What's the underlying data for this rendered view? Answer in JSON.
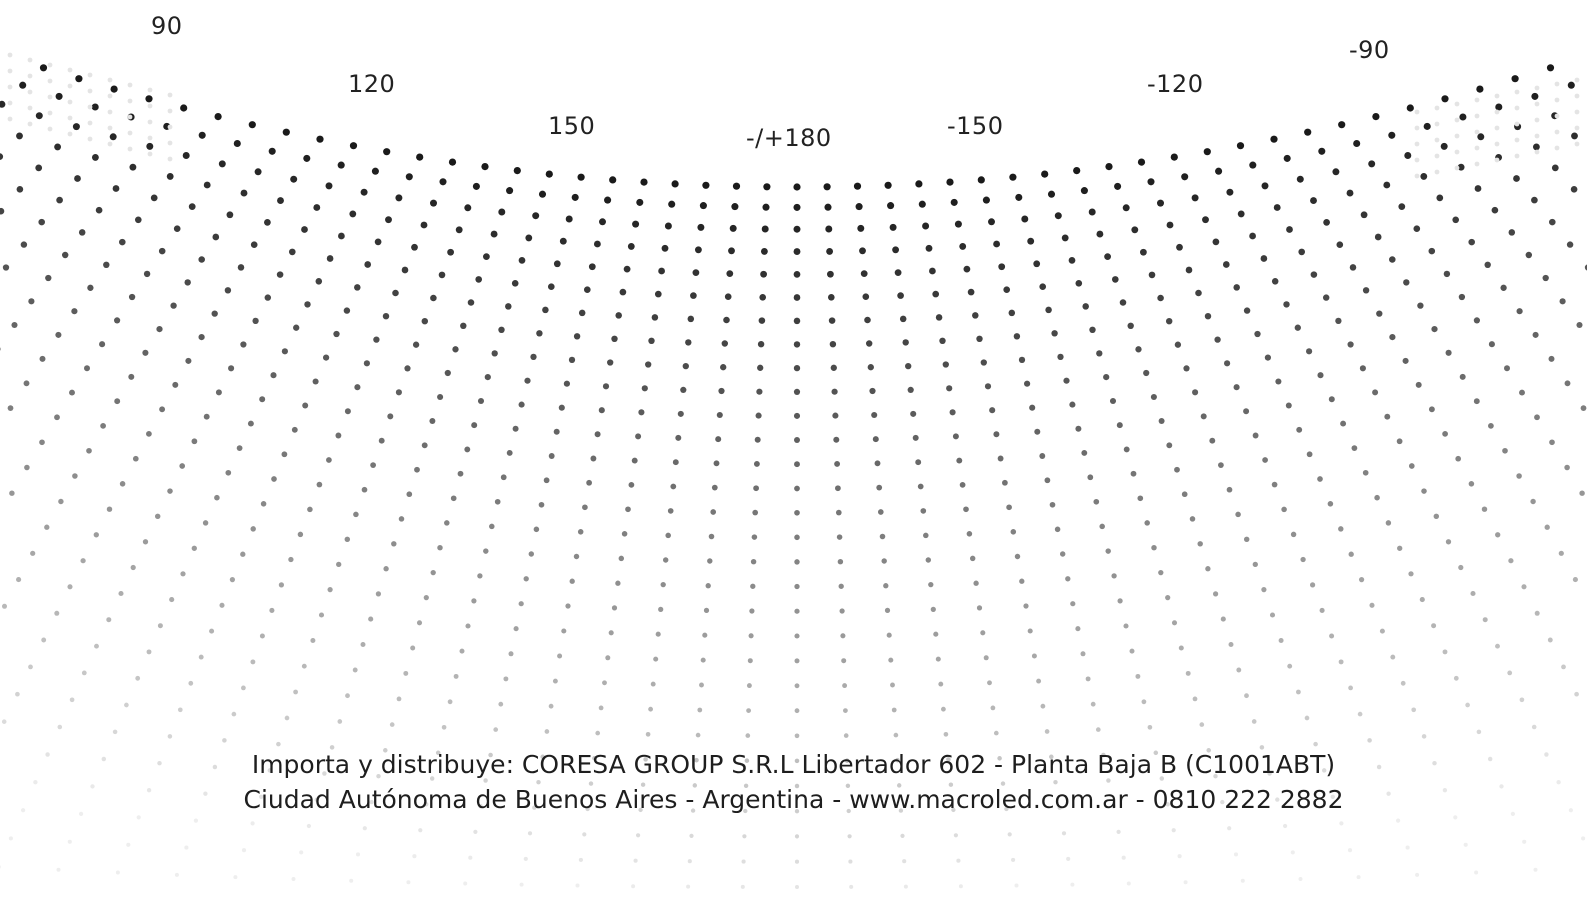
{
  "angle_labels": {
    "pos_90": "90",
    "pos_120": "120",
    "pos_150": "150",
    "center_180": "-/+180",
    "neg_150": "-150",
    "neg_120": "-120",
    "neg_90": "-90"
  },
  "footer": {
    "line1": "Importa y distribuye: CORESA GROUP S.R.L Libertador 602 - Planta Baja B (C1001ABT)",
    "line2": "Ciudad Autónoma de Buenos Aires - Argentina - www.macroled.com.ar - 0810 222 2882"
  },
  "colors": {
    "background": "#ffffff",
    "dot_dark": "#1a1a1a",
    "dot_light": "#e6e6e6",
    "text": "#222222"
  }
}
